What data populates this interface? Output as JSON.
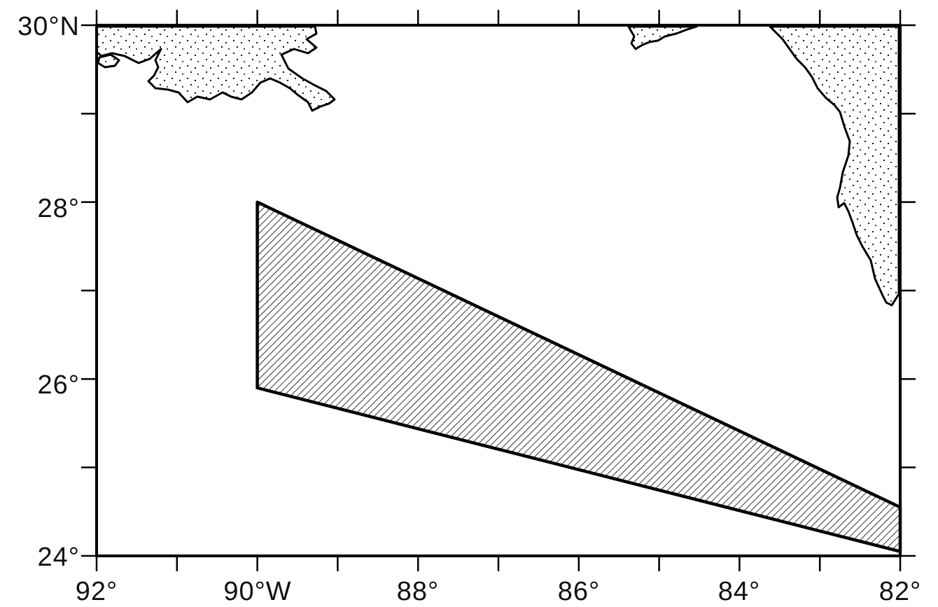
{
  "map": {
    "lon_labels": [
      "92°",
      "90°W",
      "88°",
      "86°",
      "84°",
      "82°"
    ],
    "lat_labels": [
      "30°N",
      "28°",
      "26°",
      "24°"
    ],
    "lon_range": [
      -92,
      -82
    ],
    "lat_range": [
      24,
      30
    ],
    "tick_interval_deg": 1,
    "label_interval_deg": 2,
    "land_fill": "stippled",
    "region_fill": "diagonal hatching",
    "region": {
      "shape": "quadrilateral",
      "corners": [
        {
          "lon": -90.0,
          "lat": 28.0
        },
        {
          "lon": -82.0,
          "lat": 24.55
        },
        {
          "lon": -82.0,
          "lat": 24.05
        },
        {
          "lon": -90.0,
          "lat": 25.9
        }
      ]
    },
    "colors": {
      "ink": "#000000",
      "background": "#ffffff"
    }
  }
}
